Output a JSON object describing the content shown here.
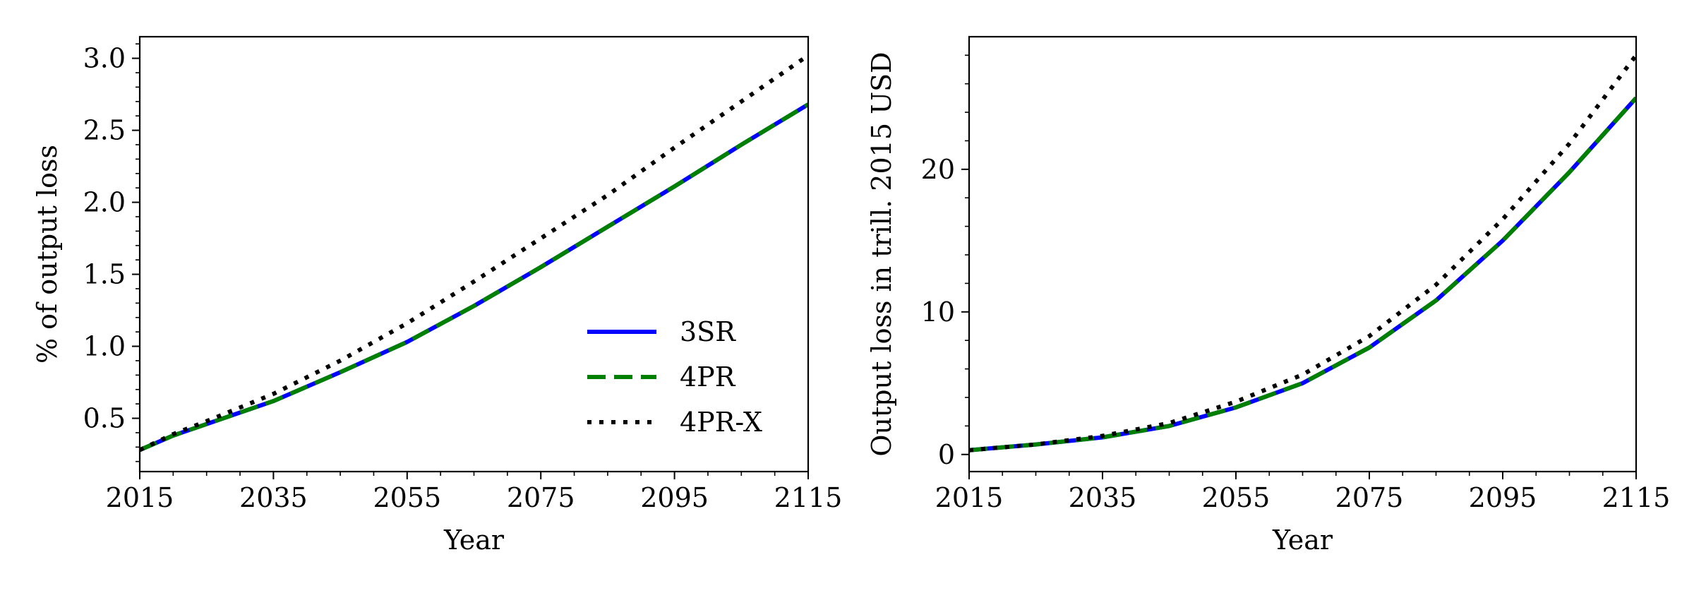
{
  "chart_data": [
    {
      "type": "line",
      "xlabel": "Year",
      "ylabel": "% of output loss",
      "xlim": [
        2015,
        2115
      ],
      "ylim": [
        0.13,
        3.15
      ],
      "xticks": [
        2015,
        2035,
        2055,
        2075,
        2095,
        2115
      ],
      "xtick_labels": [
        "2015",
        "2035",
        "2055",
        "2075",
        "2095",
        "2115"
      ],
      "yticks": [
        0.5,
        1.0,
        1.5,
        2.0,
        2.5,
        3.0
      ],
      "ytick_labels": [
        "0.5",
        "1.0",
        "1.5",
        "2.0",
        "2.5",
        "3.0"
      ],
      "legend": "lower-right",
      "grid": false,
      "x": [
        2015,
        2020,
        2025,
        2035,
        2045,
        2055,
        2065,
        2075,
        2085,
        2095,
        2105,
        2115
      ],
      "series": [
        {
          "name": "3SR",
          "color": "#0000ff",
          "style": "solid",
          "values": [
            0.28,
            0.38,
            0.46,
            0.62,
            0.82,
            1.03,
            1.28,
            1.55,
            1.83,
            2.11,
            2.4,
            2.68
          ]
        },
        {
          "name": "4PR",
          "color": "#008000",
          "style": "dashed",
          "values": [
            0.28,
            0.38,
            0.46,
            0.62,
            0.82,
            1.03,
            1.28,
            1.55,
            1.83,
            2.11,
            2.4,
            2.68
          ]
        },
        {
          "name": "4PR-X",
          "color": "#000000",
          "style": "dotted",
          "values": [
            0.28,
            0.39,
            0.48,
            0.67,
            0.9,
            1.16,
            1.45,
            1.75,
            2.05,
            2.38,
            2.7,
            3.02
          ]
        }
      ]
    },
    {
      "type": "line",
      "xlabel": "Year",
      "ylabel": "Output loss in trill. 2015 USD",
      "xlim": [
        2015,
        2115
      ],
      "ylim": [
        -1.2,
        29.3
      ],
      "xticks": [
        2015,
        2035,
        2055,
        2075,
        2095,
        2115
      ],
      "xtick_labels": [
        "2015",
        "2035",
        "2055",
        "2075",
        "2095",
        "2115"
      ],
      "yticks": [
        0,
        10,
        20
      ],
      "ytick_labels": [
        "0",
        "10",
        "20"
      ],
      "grid": false,
      "x": [
        2015,
        2025,
        2035,
        2045,
        2055,
        2065,
        2075,
        2085,
        2095,
        2105,
        2115
      ],
      "series": [
        {
          "name": "3SR",
          "color": "#0000ff",
          "style": "solid",
          "values": [
            0.3,
            0.7,
            1.2,
            2.0,
            3.3,
            5.0,
            7.5,
            10.8,
            15.0,
            19.8,
            25.0
          ]
        },
        {
          "name": "4PR",
          "color": "#008000",
          "style": "dashed",
          "values": [
            0.3,
            0.7,
            1.2,
            2.0,
            3.3,
            5.0,
            7.5,
            10.8,
            15.0,
            19.8,
            25.0
          ]
        },
        {
          "name": "4PR-X",
          "color": "#000000",
          "style": "dotted",
          "values": [
            0.3,
            0.7,
            1.3,
            2.2,
            3.7,
            5.6,
            8.3,
            11.9,
            16.5,
            21.8,
            28.0
          ]
        }
      ]
    }
  ]
}
